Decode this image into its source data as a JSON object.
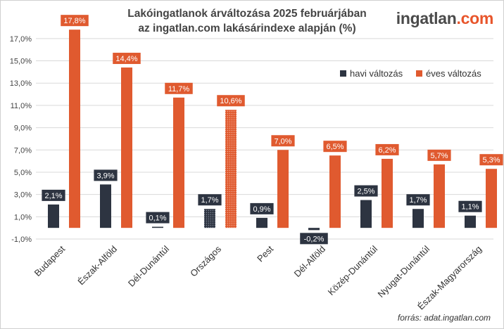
{
  "title_lines": [
    "Lakóingatlanok árváltozása 2025 februárjában",
    "az ingatlan.com lakásárindexe alapján (%)"
  ],
  "logo": {
    "part1": "ingatlan",
    "part2": ".com"
  },
  "source": "forrás: adat.ingatlan.com",
  "colors": {
    "havi": "#2d3441",
    "eves": "#e05a2f",
    "grid": "#d9d9d9"
  },
  "chart_data": {
    "type": "bar",
    "categories": [
      "Budapest",
      "Észak-Alföld",
      "Dél-Dunántúl",
      "Országos",
      "Pest",
      "Dél-Alföld",
      "Közép-Dunántúl",
      "Nyugat-Dunántúl",
      "Észak-Magyarország"
    ],
    "highlighted_category": "Országos",
    "series": [
      {
        "name": "havi változás",
        "values": [
          2.1,
          3.9,
          0.1,
          1.7,
          0.9,
          -0.2,
          2.5,
          1.7,
          1.1
        ]
      },
      {
        "name": "éves változás",
        "values": [
          17.8,
          14.4,
          11.7,
          10.6,
          7.0,
          6.5,
          6.2,
          5.7,
          5.3
        ]
      }
    ],
    "data_labels": [
      [
        "2,1%",
        "3,9%",
        "0,1%",
        "1,7%",
        "0,9%",
        "-0,2%",
        "2,5%",
        "1,7%",
        "1,1%"
      ],
      [
        "17,8%",
        "14,4%",
        "11,7%",
        "10,6%",
        "7,0%",
        "6,5%",
        "6,2%",
        "5,7%",
        "5,3%"
      ]
    ],
    "y_ticks": [
      -1,
      1,
      3,
      5,
      7,
      9,
      11,
      13,
      15,
      17
    ],
    "y_tick_labels": [
      "-1,0%",
      "1,0%",
      "3,0%",
      "5,0%",
      "7,0%",
      "9,0%",
      "11,0%",
      "13,0%",
      "15,0%",
      "17,0%"
    ],
    "ylim": [
      -1,
      18
    ],
    "grid": true,
    "legend_position": "top-right"
  }
}
